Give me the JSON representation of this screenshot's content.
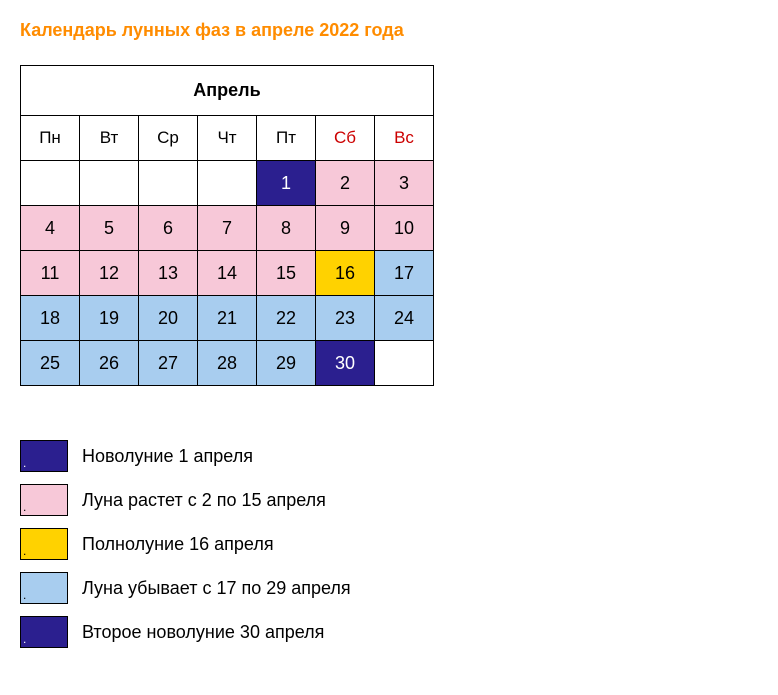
{
  "title": "Календарь лунных фаз в апреле 2022 года",
  "calendar": {
    "month_label": "Апрель",
    "day_headers": [
      "Пн",
      "Вт",
      "Ср",
      "Чт",
      "Пт",
      "Сб",
      "Вс"
    ],
    "weekend_columns": [
      5,
      6
    ],
    "colors": {
      "new_moon": {
        "bg": "#2b1f8f",
        "fg": "#ffffff"
      },
      "waxing": {
        "bg": "#f7c8d8",
        "fg": "#000000"
      },
      "full": {
        "bg": "#ffd200",
        "fg": "#000000"
      },
      "waning": {
        "bg": "#a8cdef",
        "fg": "#000000"
      },
      "empty": {
        "bg": "#ffffff",
        "fg": "#000000"
      }
    },
    "grid": [
      [
        {
          "d": "",
          "p": "empty"
        },
        {
          "d": "",
          "p": "empty"
        },
        {
          "d": "",
          "p": "empty"
        },
        {
          "d": "",
          "p": "empty"
        },
        {
          "d": "1",
          "p": "new_moon"
        },
        {
          "d": "2",
          "p": "waxing"
        },
        {
          "d": "3",
          "p": "waxing"
        }
      ],
      [
        {
          "d": "4",
          "p": "waxing"
        },
        {
          "d": "5",
          "p": "waxing"
        },
        {
          "d": "6",
          "p": "waxing"
        },
        {
          "d": "7",
          "p": "waxing"
        },
        {
          "d": "8",
          "p": "waxing"
        },
        {
          "d": "9",
          "p": "waxing"
        },
        {
          "d": "10",
          "p": "waxing"
        }
      ],
      [
        {
          "d": "11",
          "p": "waxing"
        },
        {
          "d": "12",
          "p": "waxing"
        },
        {
          "d": "13",
          "p": "waxing"
        },
        {
          "d": "14",
          "p": "waxing"
        },
        {
          "d": "15",
          "p": "waxing"
        },
        {
          "d": "16",
          "p": "full"
        },
        {
          "d": "17",
          "p": "waning"
        }
      ],
      [
        {
          "d": "18",
          "p": "waning"
        },
        {
          "d": "19",
          "p": "waning"
        },
        {
          "d": "20",
          "p": "waning"
        },
        {
          "d": "21",
          "p": "waning"
        },
        {
          "d": "22",
          "p": "waning"
        },
        {
          "d": "23",
          "p": "waning"
        },
        {
          "d": "24",
          "p": "waning"
        }
      ],
      [
        {
          "d": "25",
          "p": "waning"
        },
        {
          "d": "26",
          "p": "waning"
        },
        {
          "d": "27",
          "p": "waning"
        },
        {
          "d": "28",
          "p": "waning"
        },
        {
          "d": "29",
          "p": "waning"
        },
        {
          "d": "30",
          "p": "new_moon"
        },
        {
          "d": "",
          "p": "empty"
        }
      ]
    ]
  },
  "legend": {
    "swatch_mark": ".",
    "items": [
      {
        "phase": "new_moon",
        "label": "Новолуние 1 апреля"
      },
      {
        "phase": "waxing",
        "label": "Луна растет с 2 по 15 апреля"
      },
      {
        "phase": "full",
        "label": "Полнолуние 16 апреля"
      },
      {
        "phase": "waning",
        "label": "Луна убывает с 17 по 29 апреля"
      },
      {
        "phase": "new_moon",
        "label": "Второе новолуние 30 апреля"
      }
    ]
  }
}
